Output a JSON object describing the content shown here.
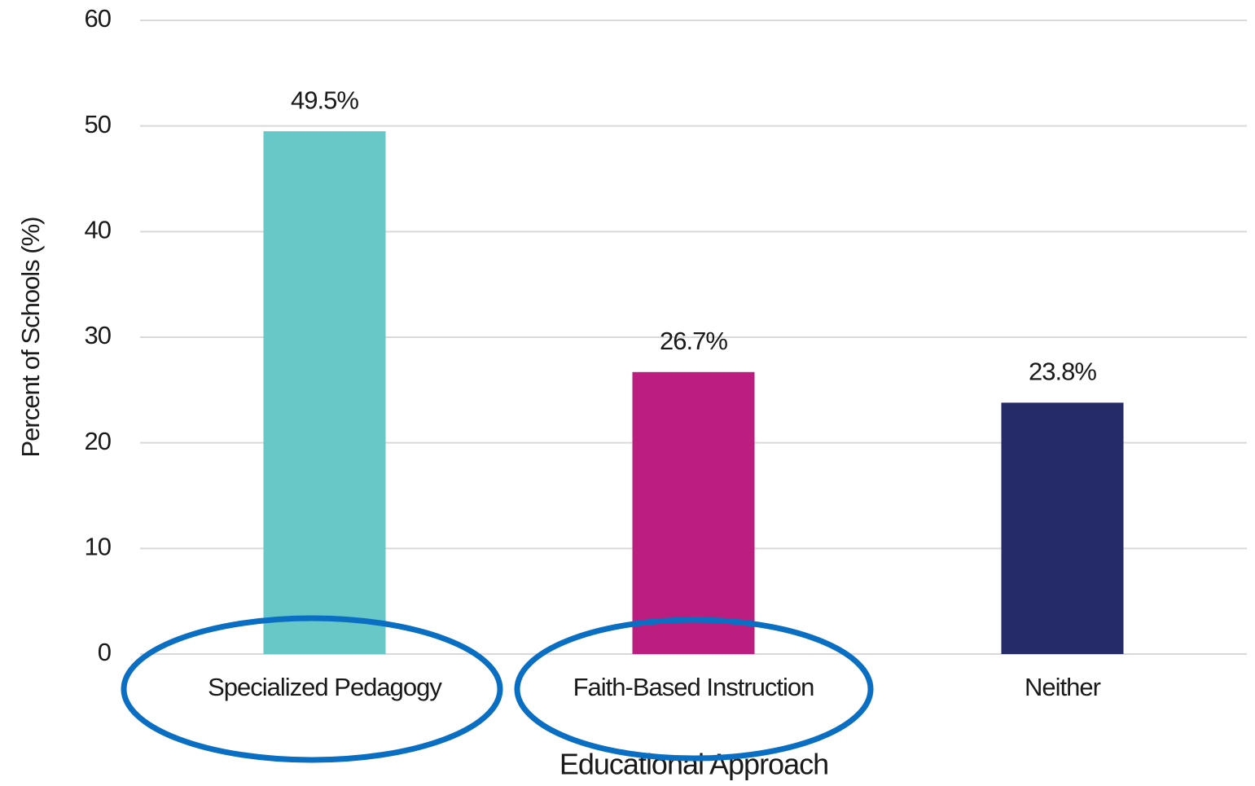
{
  "chart_data": {
    "type": "bar",
    "x_label": "Educational Approach",
    "y_label": "Percent of Schools (%)",
    "categories": [
      "Specialized Pedagogy",
      "Faith-Based Instruction",
      "Neither"
    ],
    "values": [
      49.5,
      26.7,
      23.8
    ],
    "value_labels": [
      "49.5%",
      "26.7%",
      "23.8%"
    ],
    "colors": [
      "#67c8c7",
      "#bb1e7f",
      "#242b66"
    ],
    "ylim": [
      0,
      60
    ],
    "yticks": [
      0,
      10,
      20,
      30,
      40,
      50,
      60
    ],
    "grid": true
  }
}
